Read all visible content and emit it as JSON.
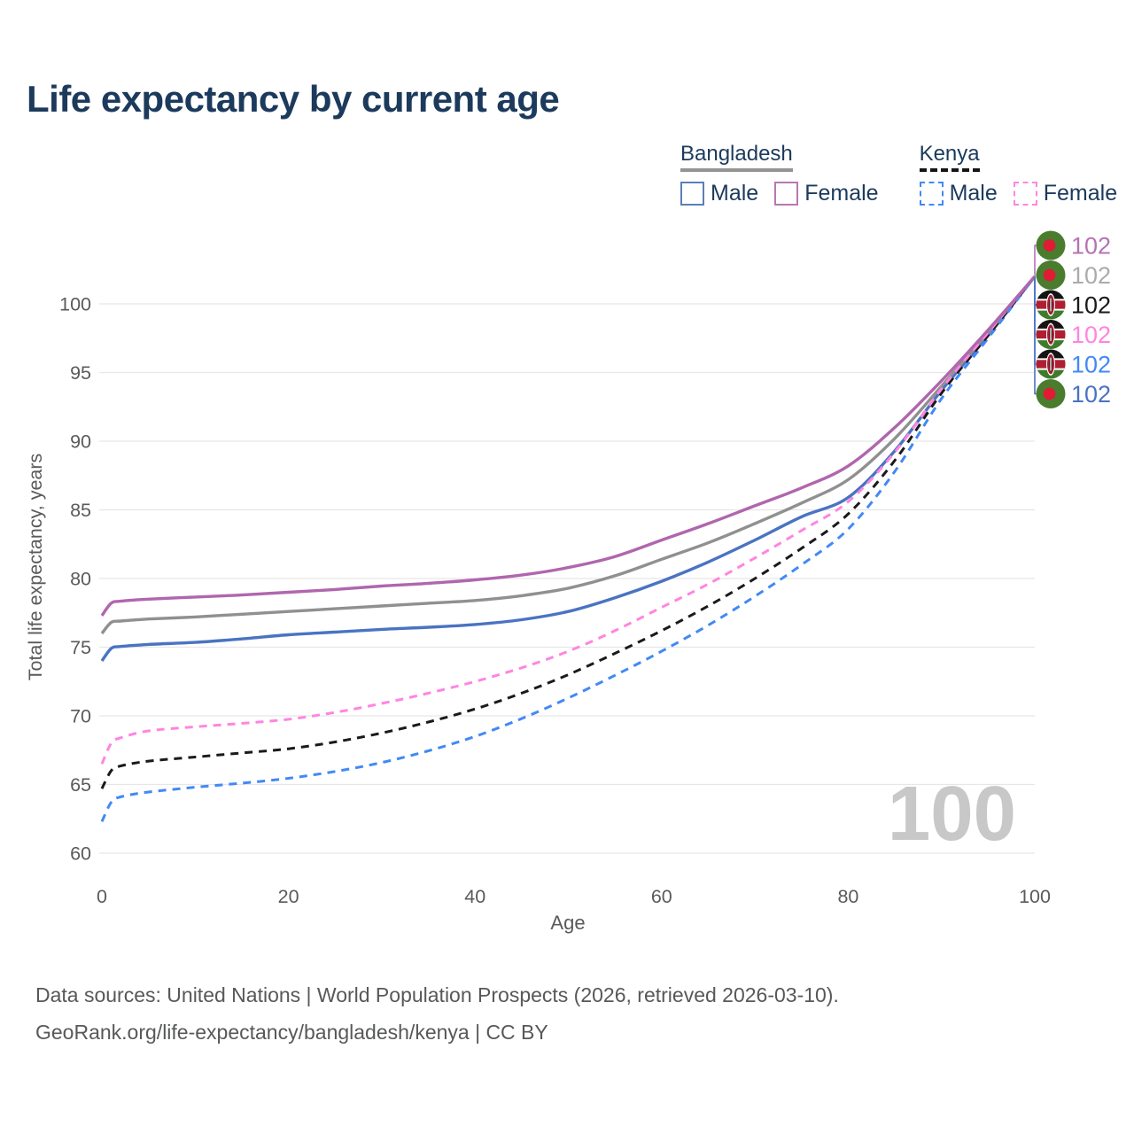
{
  "title": "Life expectancy by current age",
  "watermark": "100",
  "legend": {
    "groups": [
      {
        "name": "Bangladesh",
        "line_style": "solid",
        "underline_color": "#949494",
        "items": [
          {
            "label": "Male",
            "color": "#4a73c2"
          },
          {
            "label": "Female",
            "color": "#b066ae"
          }
        ]
      },
      {
        "name": "Kenya",
        "line_style": "dashed",
        "underline_color": "#141414",
        "items": [
          {
            "label": "Male",
            "color": "#4289f5"
          },
          {
            "label": "Female",
            "color": "#ff85e0"
          }
        ]
      }
    ]
  },
  "footer": {
    "line1": "Data sources: United Nations | World Population Prospects (2026, retrieved 2026-03-10).",
    "line2": "GeoRank.org/life-expectancy/bangladesh/kenya | CC BY"
  },
  "chart_data": {
    "type": "line",
    "title": "Life expectancy by current age",
    "xlabel": "Age",
    "ylabel": "Total life expectancy, years",
    "xlim": [
      0,
      100
    ],
    "ylim": [
      60,
      102
    ],
    "x_ticks": [
      0,
      20,
      40,
      60,
      80,
      100
    ],
    "y_ticks": [
      60,
      65,
      70,
      75,
      80,
      85,
      90,
      95,
      100
    ],
    "grid": "horizontal",
    "legend_position": "top-right",
    "x": [
      0,
      1,
      2,
      5,
      10,
      15,
      20,
      25,
      30,
      35,
      40,
      45,
      50,
      55,
      60,
      65,
      70,
      75,
      80,
      85,
      90,
      95,
      100
    ],
    "series": [
      {
        "name": "Bangladesh Male",
        "country": "Bangladesh",
        "sex": "Male",
        "style": "solid",
        "color": "#4a73c2",
        "values": [
          74.0,
          74.9,
          75.05,
          75.2,
          75.35,
          75.6,
          75.9,
          76.1,
          76.3,
          76.45,
          76.65,
          77.0,
          77.6,
          78.6,
          79.8,
          81.2,
          82.8,
          84.5,
          85.9,
          89.3,
          93.7,
          97.7,
          102
        ]
      },
      {
        "name": "Bangladesh Both sexes",
        "country": "Bangladesh",
        "sex": "Both",
        "style": "solid",
        "color": "#909090",
        "values": [
          76.0,
          76.8,
          76.9,
          77.05,
          77.2,
          77.4,
          77.6,
          77.8,
          78.0,
          78.2,
          78.4,
          78.75,
          79.3,
          80.2,
          81.4,
          82.6,
          84.0,
          85.5,
          87.2,
          90.2,
          94.0,
          97.9,
          102
        ]
      },
      {
        "name": "Kenya Male",
        "country": "Kenya",
        "sex": "Male",
        "style": "dashed",
        "color": "#4289f5",
        "values": [
          62.3,
          63.7,
          64.1,
          64.45,
          64.8,
          65.1,
          65.45,
          65.95,
          66.6,
          67.45,
          68.5,
          69.8,
          71.3,
          72.95,
          74.7,
          76.6,
          78.7,
          81.0,
          83.6,
          87.8,
          93.1,
          97.5,
          102
        ]
      },
      {
        "name": "Kenya Both sexes",
        "country": "Kenya",
        "sex": "Both",
        "style": "dashed",
        "color": "#1a1a1a",
        "values": [
          64.7,
          66.0,
          66.35,
          66.7,
          67.0,
          67.3,
          67.6,
          68.1,
          68.75,
          69.55,
          70.5,
          71.65,
          73.0,
          74.55,
          76.2,
          78.0,
          80.0,
          82.2,
          84.7,
          88.6,
          93.5,
          97.7,
          102
        ]
      },
      {
        "name": "Kenya Female",
        "country": "Kenya",
        "sex": "Female",
        "style": "dashed",
        "color": "#ff85e0",
        "values": [
          66.5,
          68.0,
          68.4,
          68.9,
          69.2,
          69.45,
          69.75,
          70.25,
          70.9,
          71.65,
          72.5,
          73.5,
          74.7,
          76.2,
          77.9,
          79.6,
          81.5,
          83.5,
          85.6,
          89.2,
          93.8,
          97.9,
          102
        ]
      },
      {
        "name": "Bangladesh Female",
        "country": "Bangladesh",
        "sex": "Female",
        "style": "solid",
        "color": "#b066ae",
        "values": [
          77.3,
          78.2,
          78.35,
          78.5,
          78.65,
          78.8,
          79.0,
          79.2,
          79.45,
          79.65,
          79.9,
          80.25,
          80.8,
          81.6,
          82.8,
          84.0,
          85.3,
          86.6,
          88.2,
          91.0,
          94.4,
          98.1,
          102
        ]
      }
    ],
    "end_labels": [
      {
        "flag": "bangladesh",
        "series": "Bangladesh Female",
        "value": "102",
        "color": "#b473b4"
      },
      {
        "flag": "bangladesh",
        "series": "Bangladesh Both sexes",
        "value": "102",
        "color": "#ababab"
      },
      {
        "flag": "kenya",
        "series": "Kenya Both sexes",
        "value": "102",
        "color": "#1a1a1a"
      },
      {
        "flag": "kenya",
        "series": "Kenya Female",
        "value": "102",
        "color": "#ff85e0"
      },
      {
        "flag": "kenya",
        "series": "Kenya Male",
        "value": "102",
        "color": "#4289f5"
      },
      {
        "flag": "bangladesh",
        "series": "Bangladesh Male",
        "value": "102",
        "color": "#4a73c2"
      }
    ]
  }
}
